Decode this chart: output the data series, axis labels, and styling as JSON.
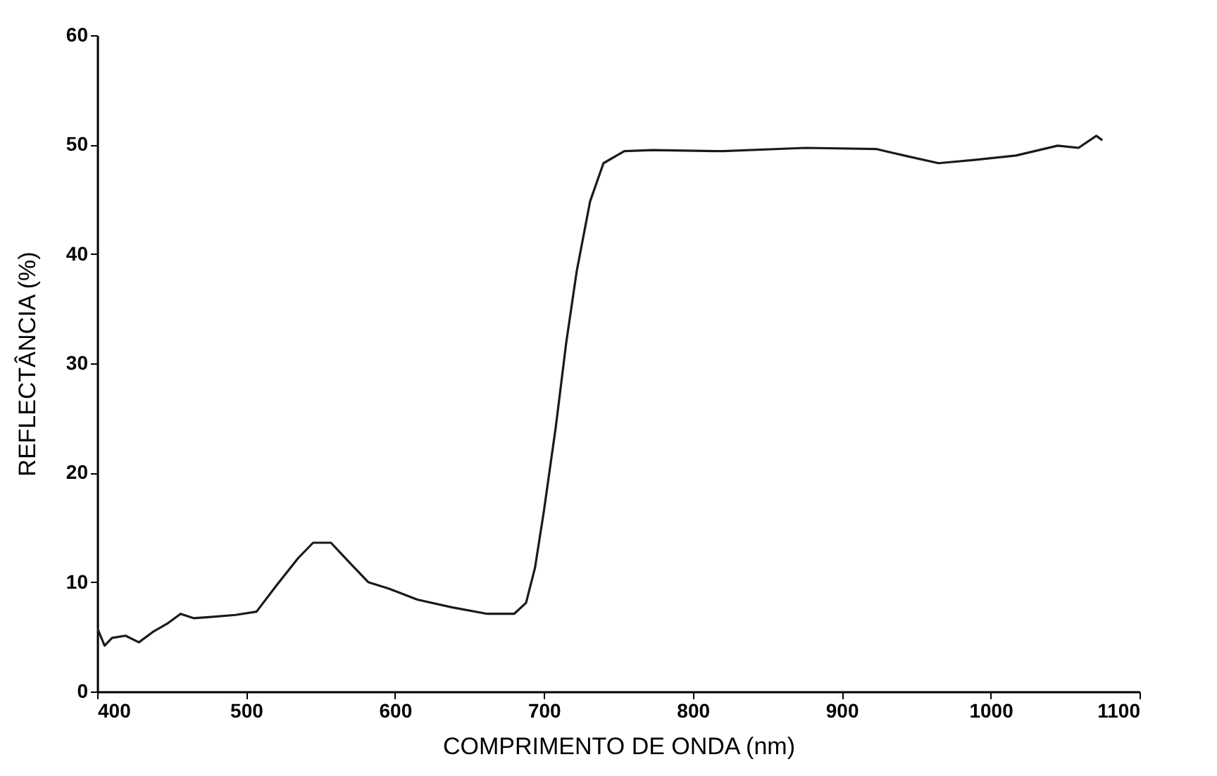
{
  "chart_data": {
    "type": "line",
    "xlabel": "COMPRIMENTO DE ONDA (nm)",
    "ylabel": "REFLECTÂNCIA (%)",
    "xlim": [
      400,
      1100
    ],
    "xticks": [
      400,
      500,
      600,
      700,
      800,
      900,
      1000,
      1100
    ],
    "ylim": [
      0,
      60
    ],
    "yticks": [
      0,
      10,
      20,
      30,
      40,
      50,
      60
    ],
    "grid": false,
    "x": [
      400,
      405,
      410,
      419,
      428,
      438,
      447,
      456,
      465,
      475,
      493,
      507,
      521,
      535,
      545,
      557,
      568,
      582,
      596,
      615,
      638,
      662,
      680,
      688,
      694,
      700,
      708,
      715,
      722,
      731,
      740,
      754,
      773,
      820,
      876,
      923,
      942,
      965,
      989,
      1017,
      1045,
      1059,
      1071,
      1075
    ],
    "series": [
      {
        "color": "#1a1a1a",
        "values": [
          5.8,
          4.2,
          4.9,
          5.1,
          4.5,
          5.5,
          6.2,
          7.1,
          6.7,
          6.8,
          7.0,
          7.3,
          9.8,
          12.2,
          13.6,
          13.6,
          12.0,
          10.0,
          9.4,
          8.4,
          7.7,
          7.1,
          7.1,
          8.1,
          11.3,
          16.5,
          24.2,
          31.9,
          38.4,
          44.8,
          48.3,
          49.4,
          49.5,
          49.4,
          49.7,
          49.6,
          49.0,
          48.3,
          48.6,
          49.0,
          49.9,
          49.7,
          50.8,
          50.4
        ]
      }
    ]
  }
}
